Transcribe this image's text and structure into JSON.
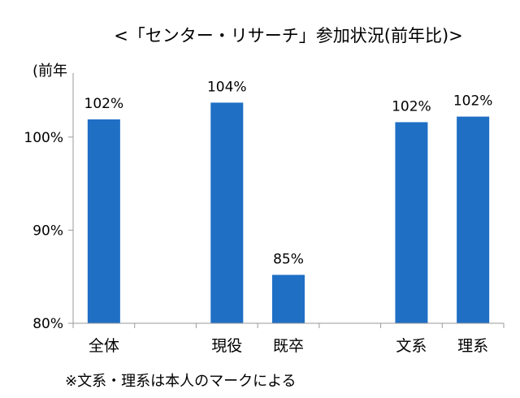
{
  "chart_data": {
    "type": "bar",
    "title": "<「センター・リサーチ」参加状況(前年比)>",
    "ylabel": "(前年",
    "categories": [
      "全体",
      "",
      "現役",
      "既卒",
      "",
      "文系",
      "理系"
    ],
    "values": [
      101.9,
      null,
      103.7,
      85.2,
      null,
      101.6,
      102.2
    ],
    "data_labels": [
      "102%",
      "",
      "104%",
      "85%",
      "",
      "102%",
      "102%"
    ],
    "yticks": [
      80,
      90,
      100
    ],
    "ytick_labels": [
      "80%",
      "90%",
      "100%"
    ],
    "ylim": [
      80,
      106
    ],
    "grid": false,
    "note": "※文系・理系は本人のマークによる"
  },
  "colors": {
    "bar": "#1f6fc5",
    "axis": "#9a9a9a"
  }
}
